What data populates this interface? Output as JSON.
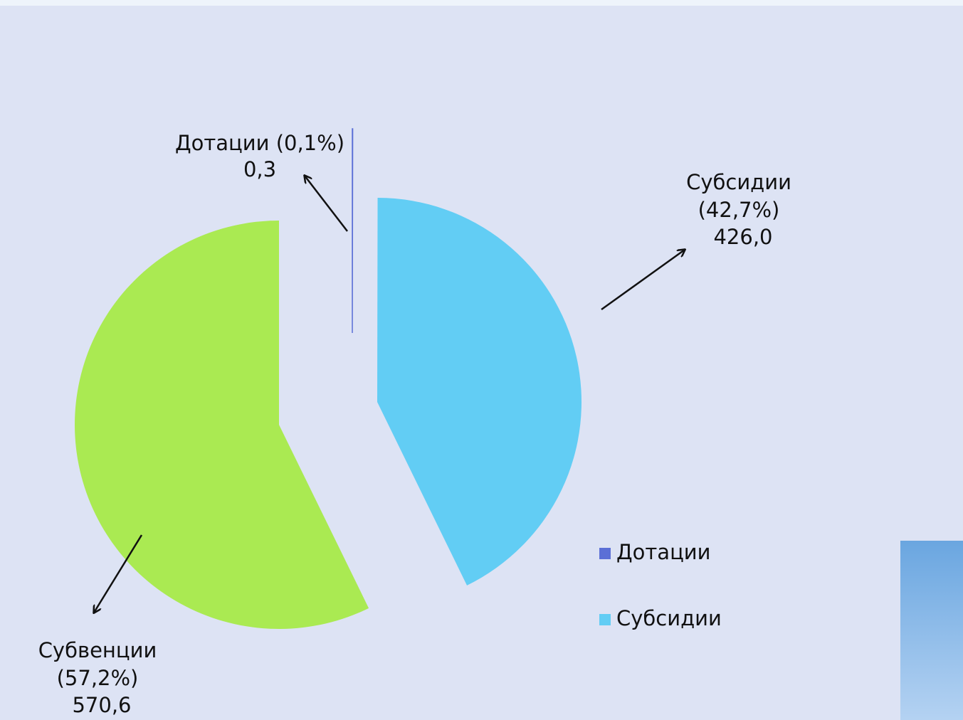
{
  "chart_data": {
    "type": "pie",
    "categories": [
      "Дотации",
      "Субсидии",
      "Субвенции"
    ],
    "values": [
      0.3,
      426.0,
      570.6
    ],
    "value_labels": [
      "0,3",
      "426,0",
      "570,6"
    ],
    "percent_labels": [
      "(0,1%)",
      "(42,7%)",
      "(57,2%)"
    ],
    "colors": [
      "#5b6fd6",
      "#62cdf4",
      "#aaea52"
    ],
    "legend": "bottom-right"
  }
}
